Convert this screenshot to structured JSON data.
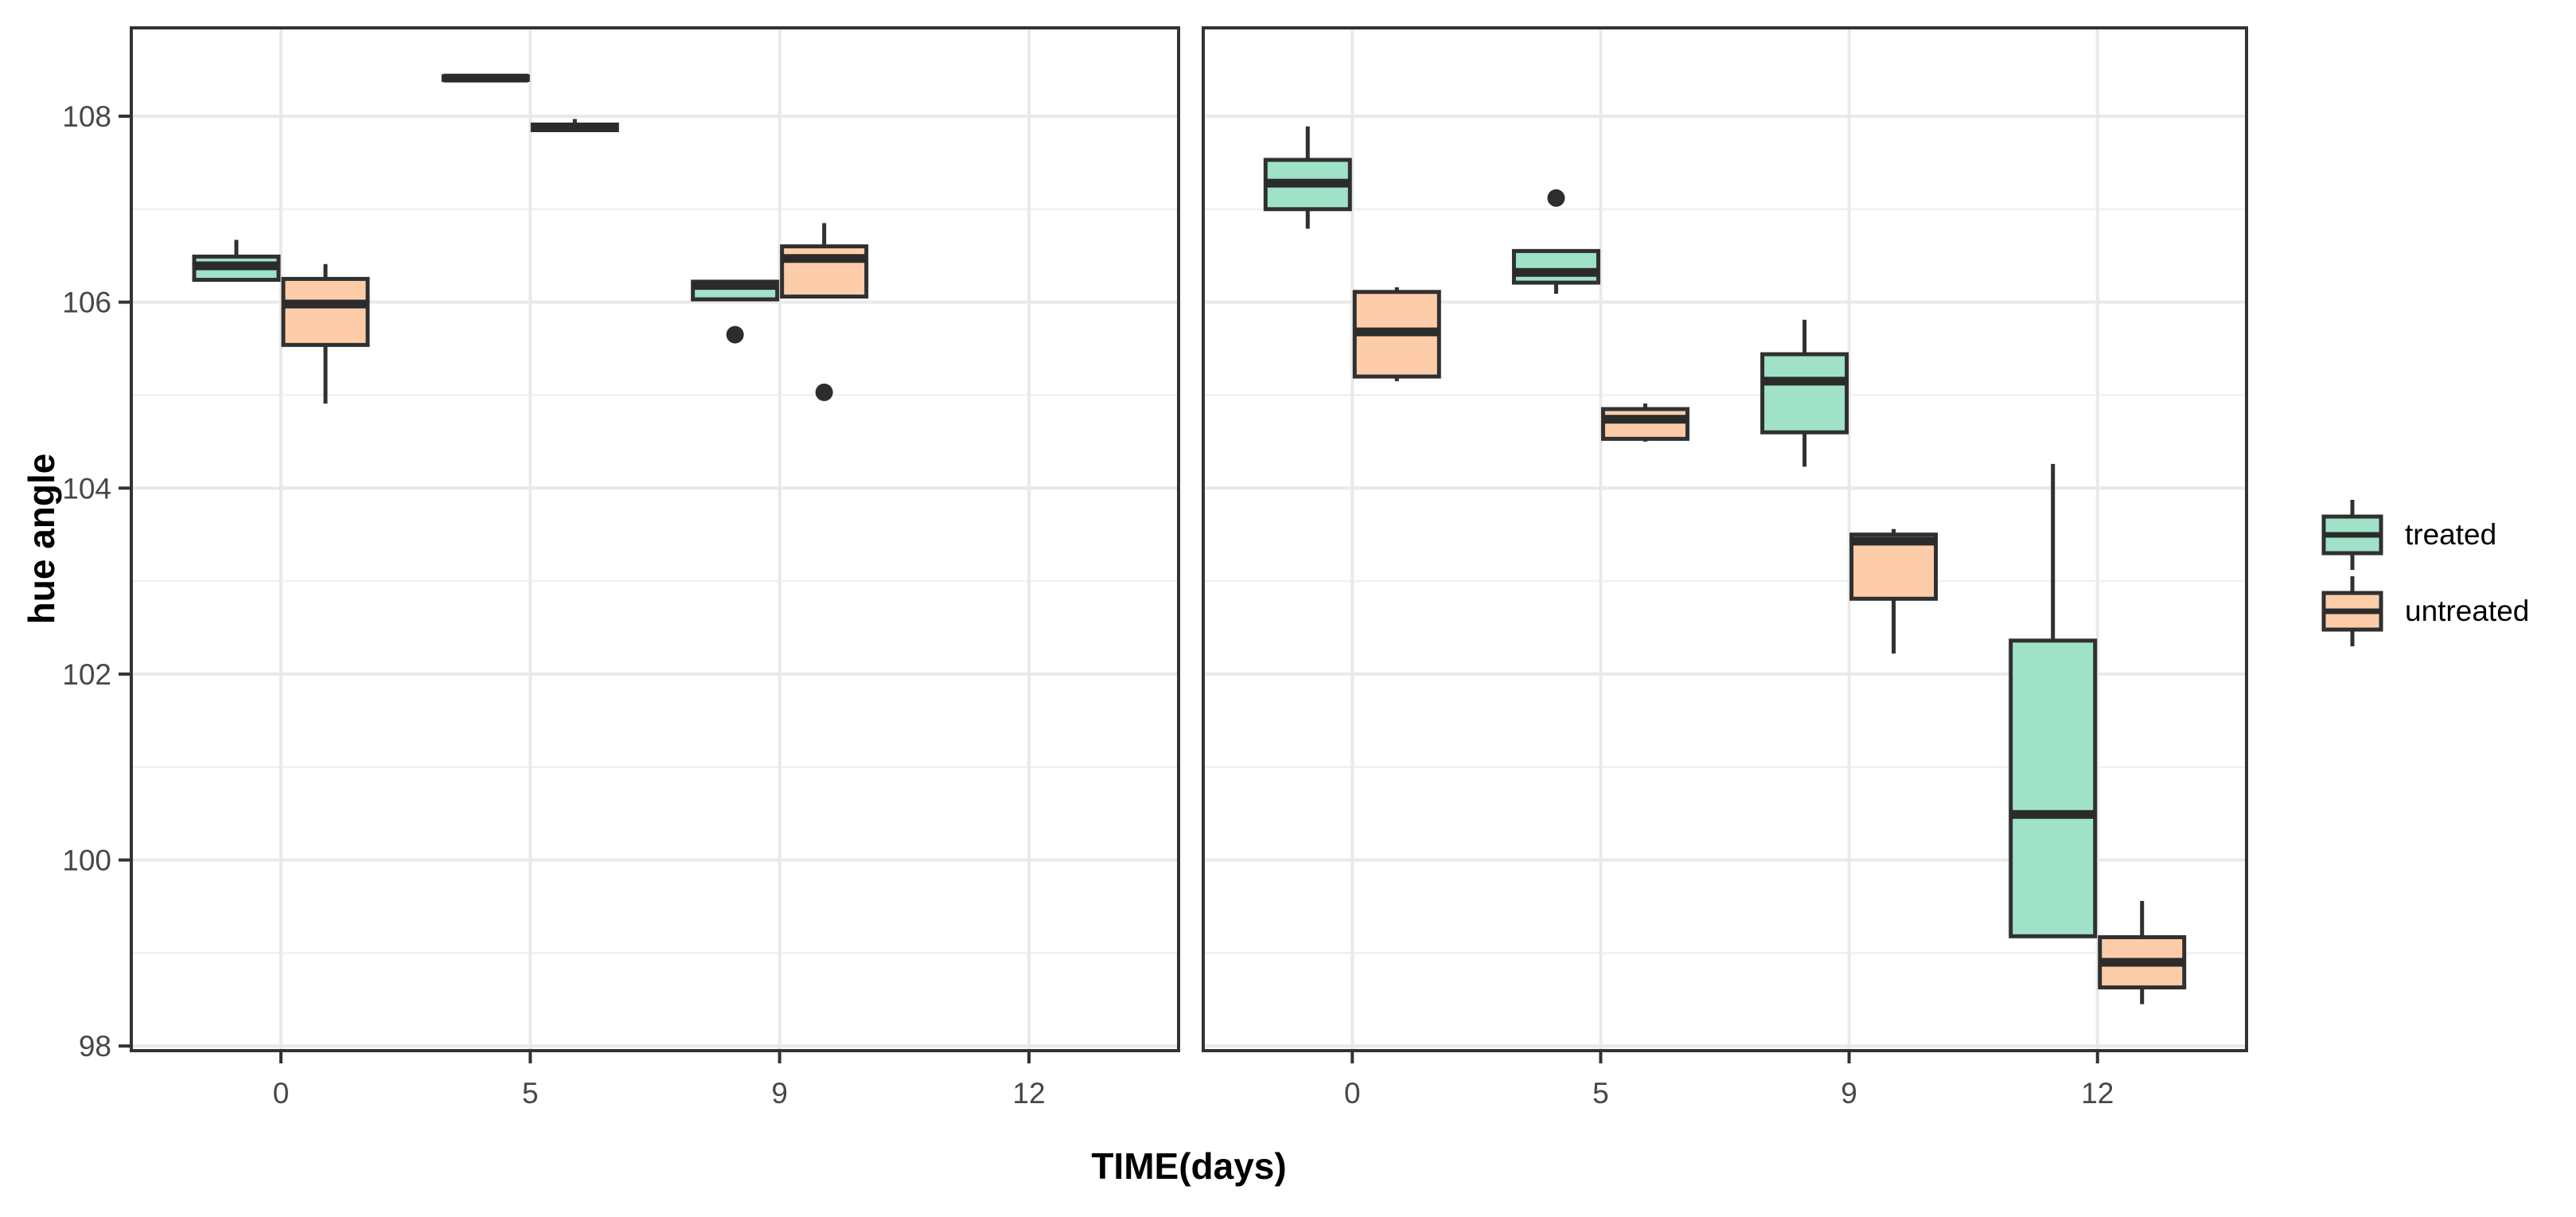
{
  "figure": {
    "xlabel": "TIME(days)",
    "ylabel": "hue angle"
  },
  "colors": {
    "treated_fill": "#9FE2C8",
    "untreated_fill": "#FDCDA9",
    "box_stroke": "#303030",
    "median_stroke": "#2B2B2B",
    "outlier_fill": "#2D2D2D",
    "panel_border": "#333333",
    "grid_major": "#E9E9E9",
    "grid_minor": "#F0F0F0",
    "tick_mark": "#333333",
    "tick_text": "#474747",
    "background": "#FFFFFF"
  },
  "chart_data": {
    "type": "boxplot",
    "title": "",
    "xlabel": "TIME(days)",
    "ylabel": "hue angle",
    "categories": [
      "0",
      "5",
      "9",
      "12"
    ],
    "y_ticks": [
      98,
      100,
      102,
      104,
      106,
      108
    ],
    "y_minor_ticks": [
      99,
      101,
      103,
      105,
      107
    ],
    "ylim": [
      97.95,
      108.95
    ],
    "grid": true,
    "facets": 2,
    "legend_position": "right",
    "series": [
      "treated",
      "untreated"
    ],
    "legend": [
      {
        "label": "treated",
        "color": "#9FE2C8"
      },
      {
        "label": "untreated",
        "color": "#FDCDA9"
      }
    ],
    "panels": [
      {
        "name": "panel-1",
        "boxes": [
          {
            "category": "0",
            "series": "treated",
            "low": 106.24,
            "q1": 106.24,
            "median": 106.39,
            "q3": 106.49,
            "high": 106.67,
            "outliers": []
          },
          {
            "category": "0",
            "series": "untreated",
            "low": 104.91,
            "q1": 105.54,
            "median": 105.98,
            "q3": 106.25,
            "high": 106.41,
            "outliers": []
          },
          {
            "category": "5",
            "series": "treated",
            "low": 108.39,
            "q1": 108.39,
            "median": 108.41,
            "q3": 108.43,
            "high": 108.43,
            "outliers": []
          },
          {
            "category": "5",
            "series": "untreated",
            "low": 107.85,
            "q1": 107.85,
            "median": 107.88,
            "q3": 107.91,
            "high": 107.97,
            "outliers": []
          },
          {
            "category": "9",
            "series": "treated",
            "low": 106.03,
            "q1": 106.03,
            "median": 106.18,
            "q3": 106.22,
            "high": 106.22,
            "outliers": [
              105.65
            ]
          },
          {
            "category": "9",
            "series": "untreated",
            "low": 106.06,
            "q1": 106.06,
            "median": 106.47,
            "q3": 106.6,
            "high": 106.85,
            "outliers": [
              105.03
            ]
          }
        ]
      },
      {
        "name": "panel-2",
        "boxes": [
          {
            "category": "0",
            "series": "treated",
            "low": 106.79,
            "q1": 107.0,
            "median": 107.28,
            "q3": 107.53,
            "high": 107.89,
            "outliers": []
          },
          {
            "category": "0",
            "series": "untreated",
            "low": 105.15,
            "q1": 105.2,
            "median": 105.68,
            "q3": 106.11,
            "high": 106.16,
            "outliers": []
          },
          {
            "category": "5",
            "series": "treated",
            "low": 106.09,
            "q1": 106.21,
            "median": 106.32,
            "q3": 106.55,
            "high": 106.55,
            "outliers": [
              107.12
            ]
          },
          {
            "category": "5",
            "series": "untreated",
            "low": 104.5,
            "q1": 104.53,
            "median": 104.74,
            "q3": 104.85,
            "high": 104.91,
            "outliers": []
          },
          {
            "category": "9",
            "series": "treated",
            "low": 104.23,
            "q1": 104.6,
            "median": 105.15,
            "q3": 105.44,
            "high": 105.81,
            "outliers": []
          },
          {
            "category": "9",
            "series": "untreated",
            "low": 102.22,
            "q1": 102.81,
            "median": 103.43,
            "q3": 103.5,
            "high": 103.56,
            "outliers": []
          },
          {
            "category": "12",
            "series": "treated",
            "low": 99.18,
            "q1": 99.18,
            "median": 100.49,
            "q3": 102.36,
            "high": 104.26,
            "outliers": []
          },
          {
            "category": "12",
            "series": "untreated",
            "low": 98.45,
            "q1": 98.63,
            "median": 98.9,
            "q3": 99.17,
            "high": 99.56,
            "outliers": []
          }
        ]
      }
    ]
  }
}
